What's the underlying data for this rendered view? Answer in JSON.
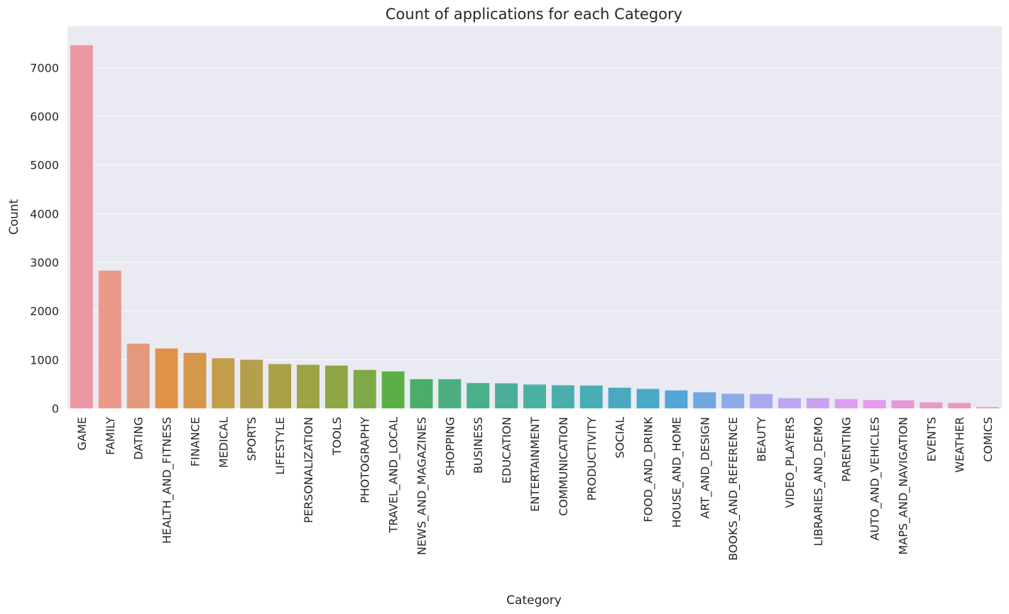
{
  "chart_data": {
    "type": "bar",
    "title": "Count of applications for each Category",
    "xlabel": "Category",
    "ylabel": "Count",
    "ylim": [
      0,
      7850
    ],
    "yticks": [
      0,
      1000,
      2000,
      3000,
      4000,
      5000,
      6000,
      7000
    ],
    "grid": "y-axis gridlines on",
    "categories": [
      "GAME",
      "FAMILY",
      "DATING",
      "HEALTH_AND_FITNESS",
      "FINANCE",
      "MEDICAL",
      "SPORTS",
      "LIFESTYLE",
      "PERSONALIZATION",
      "TOOLS",
      "PHOTOGRAPHY",
      "TRAVEL_AND_LOCAL",
      "NEWS_AND_MAGAZINES",
      "SHOPPING",
      "BUSINESS",
      "EDUCATION",
      "ENTERTAINMENT",
      "COMMUNICATION",
      "PRODUCTIVITY",
      "SOCIAL",
      "FOOD_AND_DRINK",
      "HOUSE_AND_HOME",
      "ART_AND_DESIGN",
      "BOOKS_AND_REFERENCE",
      "BEAUTY",
      "VIDEO_PLAYERS",
      "LIBRARIES_AND_DEMO",
      "PARENTING",
      "AUTO_AND_VEHICLES",
      "MAPS_AND_NAVIGATION",
      "EVENTS",
      "WEATHER",
      "COMICS"
    ],
    "values": [
      7460,
      2830,
      1330,
      1230,
      1140,
      1030,
      1000,
      910,
      895,
      880,
      790,
      760,
      600,
      600,
      520,
      515,
      490,
      475,
      470,
      425,
      400,
      370,
      330,
      300,
      295,
      210,
      210,
      190,
      170,
      165,
      125,
      110,
      25
    ],
    "colors": [
      "#ee97a4",
      "#e99a8a",
      "#e5987b",
      "#e29148",
      "#d5974a",
      "#c49d4a",
      "#b69f4a",
      "#a8a146",
      "#9ca445",
      "#8ea644",
      "#7fa846",
      "#5ab045",
      "#4cad6a",
      "#4cae80",
      "#4aaf8a",
      "#4aae98",
      "#4ab0a2",
      "#4aaeac",
      "#4aacb4",
      "#4aa9be",
      "#4aa8c8",
      "#53a6d5",
      "#6fa8df",
      "#8faae8",
      "#a8a9ee",
      "#bba8f0",
      "#caa2f0",
      "#dc9ef0",
      "#e69bec",
      "#e699d8",
      "#e89ac8",
      "#ea98b8",
      "#ec96ae"
    ],
    "background": "#eaeaf2",
    "grid_color": "#ffffff"
  }
}
